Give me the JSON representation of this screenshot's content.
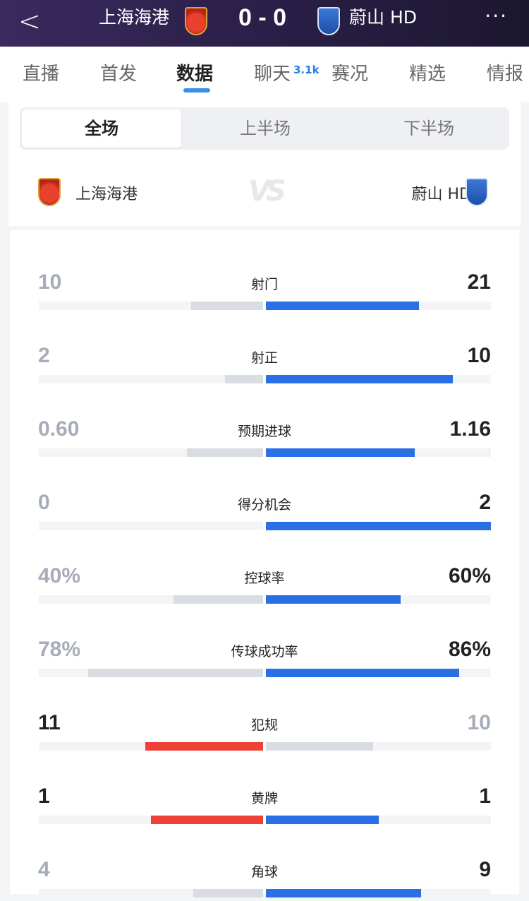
{
  "header": {
    "back": "<",
    "home": "上海海港",
    "score": "0 - 0",
    "away": "蔚山 HD",
    "more": "···"
  },
  "tabs": [
    {
      "label": "直播"
    },
    {
      "label": "首发"
    },
    {
      "label": "数据",
      "active": true
    },
    {
      "label": "聊天",
      "badge": "3.1k"
    },
    {
      "label": "赛况"
    },
    {
      "label": "精选"
    },
    {
      "label": "情报"
    }
  ],
  "periods": [
    {
      "label": "全场",
      "active": true
    },
    {
      "label": "上半场"
    },
    {
      "label": "下半场"
    }
  ],
  "teams": {
    "home": "上海海港",
    "away": "蔚山 HD",
    "vs": "VS"
  },
  "colors": {
    "home": "#ee4036",
    "away": "#2b6fe5",
    "loser": "#d9dce1",
    "loser_text": "#a6acb8",
    "winner_text": "#222222"
  },
  "stats": [
    {
      "label": "射门",
      "home": "10",
      "away": "21",
      "home_frac": 0.32,
      "away_frac": 0.68,
      "winner": "away"
    },
    {
      "label": "射正",
      "home": "2",
      "away": "10",
      "home_frac": 0.17,
      "away_frac": 0.83,
      "winner": "away"
    },
    {
      "label": "预期进球",
      "home": "0.60",
      "away": "1.16",
      "home_frac": 0.34,
      "away_frac": 0.66,
      "winner": "away"
    },
    {
      "label": "得分机会",
      "home": "0",
      "away": "2",
      "home_frac": 0,
      "away_frac": 1,
      "winner": "away"
    },
    {
      "label": "控球率",
      "home": "40%",
      "away": "60%",
      "home_frac": 0.4,
      "away_frac": 0.6,
      "winner": "away"
    },
    {
      "label": "传球成功率",
      "home": "78%",
      "away": "86%",
      "home_frac": 0.78,
      "away_frac": 0.86,
      "winner": "away"
    },
    {
      "label": "犯规",
      "home": "11",
      "away": "10",
      "home_frac": 0.524,
      "away_frac": 0.476,
      "winner": "home"
    },
    {
      "label": "黄牌",
      "home": "1",
      "away": "1",
      "home_frac": 0.5,
      "away_frac": 0.5,
      "winner": "both"
    },
    {
      "label": "角球",
      "home": "4",
      "away": "9",
      "home_frac": 0.31,
      "away_frac": 0.69,
      "winner": "away"
    }
  ]
}
